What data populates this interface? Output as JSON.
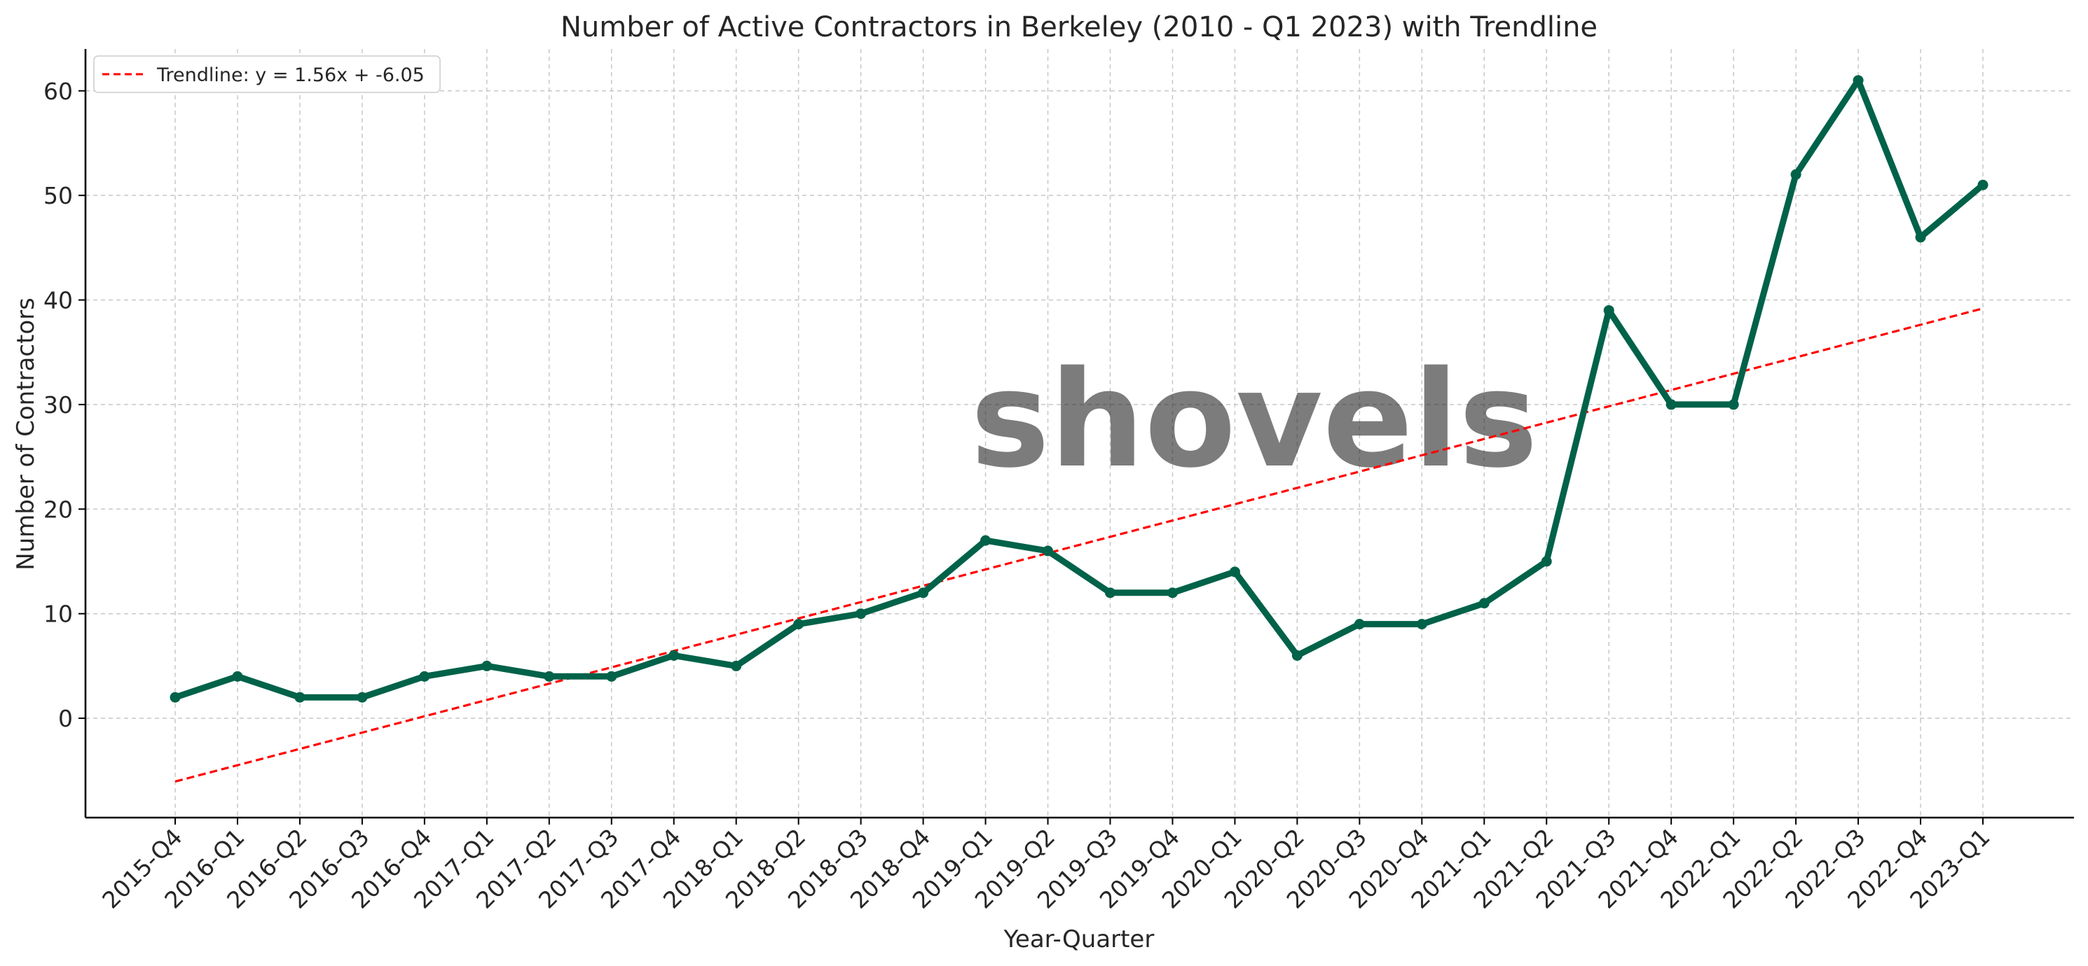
{
  "chart_data": {
    "type": "line",
    "title": "Number of Active Contractors in Berkeley (2010 - Q1 2023) with Trendline",
    "xlabel": "Year-Quarter",
    "ylabel": "Number of Contractors",
    "categories": [
      "2015-Q4",
      "2016-Q1",
      "2016-Q2",
      "2016-Q3",
      "2016-Q4",
      "2017-Q1",
      "2017-Q2",
      "2017-Q3",
      "2017-Q4",
      "2018-Q1",
      "2018-Q2",
      "2018-Q3",
      "2018-Q4",
      "2019-Q1",
      "2019-Q2",
      "2019-Q3",
      "2019-Q4",
      "2020-Q1",
      "2020-Q2",
      "2020-Q3",
      "2020-Q4",
      "2021-Q1",
      "2021-Q2",
      "2021-Q3",
      "2021-Q4",
      "2022-Q1",
      "2022-Q2",
      "2022-Q3",
      "2022-Q4",
      "2023-Q1"
    ],
    "series": [
      {
        "values": [
          2,
          4,
          2,
          2,
          4,
          5,
          4,
          4,
          6,
          5,
          9,
          10,
          12,
          17,
          16,
          12,
          12,
          14,
          6,
          9,
          9,
          11,
          15,
          39,
          30,
          30,
          52,
          61,
          46,
          51
        ],
        "color": "#006249",
        "marker": "circle"
      }
    ],
    "trendline": {
      "name": "Trendline: y = 1.56x + -6.05",
      "slope": 1.56,
      "intercept": -6.05,
      "color": "#ff0000",
      "style": "dashed"
    },
    "ylim": [
      -9.5,
      64
    ],
    "yticks": [
      0,
      10,
      20,
      30,
      40,
      50,
      60
    ],
    "grid": true,
    "legend": "top-left",
    "watermark": "shovels"
  }
}
